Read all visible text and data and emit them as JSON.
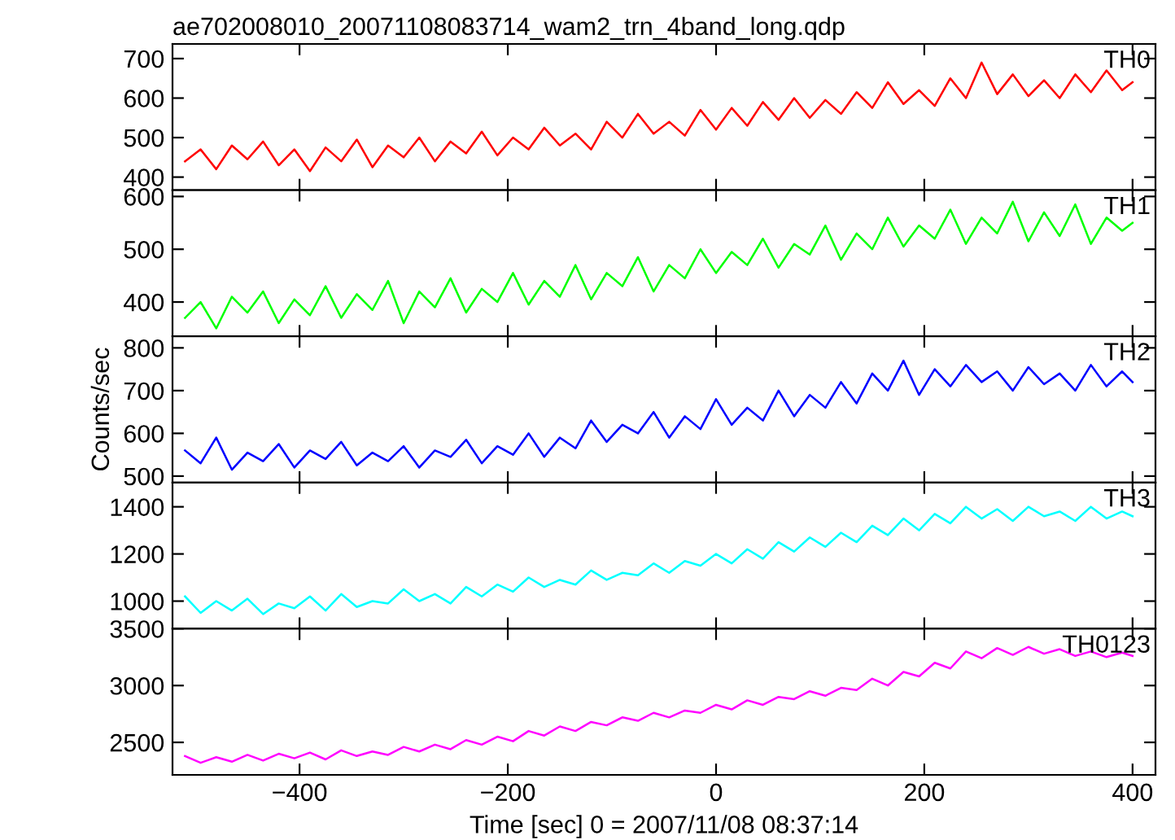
{
  "chart_data": [
    {
      "type": "line",
      "title": "ae702008010_20071108083714_wam2_trn_4band_long.qdp",
      "x": [
        -510,
        -495,
        -480,
        -465,
        -450,
        -435,
        -420,
        -405,
        -390,
        -375,
        -360,
        -345,
        -330,
        -315,
        -300,
        -285,
        -270,
        -255,
        -240,
        -225,
        -210,
        -195,
        -180,
        -165,
        -150,
        -135,
        -120,
        -105,
        -90,
        -75,
        -60,
        -45,
        -30,
        -15,
        0,
        15,
        30,
        45,
        60,
        75,
        90,
        105,
        120,
        135,
        150,
        165,
        180,
        195,
        210,
        225,
        240,
        255,
        270,
        285,
        300,
        315,
        330,
        345,
        360,
        375,
        390,
        400
      ],
      "xlim": [
        -522,
        422
      ],
      "xticks": [
        {
          "value": -400,
          "label": null
        },
        {
          "value": -200,
          "label": null
        },
        {
          "value": 0,
          "label": null
        },
        {
          "value": 200,
          "label": null
        },
        {
          "value": 400,
          "label": null
        }
      ],
      "ylim": [
        367,
        737
      ],
      "yticks": [
        400,
        500,
        600,
        700
      ],
      "tick_labels": "y",
      "grid": false,
      "legend": false,
      "series": [
        {
          "name": "TH0",
          "color": "#ff0000",
          "values": [
            440,
            470,
            420,
            480,
            445,
            490,
            430,
            470,
            415,
            475,
            440,
            495,
            425,
            480,
            450,
            500,
            440,
            490,
            460,
            515,
            455,
            500,
            470,
            525,
            480,
            510,
            470,
            540,
            500,
            560,
            510,
            540,
            505,
            570,
            520,
            575,
            530,
            590,
            545,
            600,
            550,
            595,
            560,
            615,
            575,
            640,
            585,
            620,
            580,
            650,
            600,
            690,
            610,
            660,
            605,
            645,
            600,
            660,
            615,
            670,
            620,
            640
          ]
        }
      ]
    },
    {
      "type": "line",
      "x": [
        -510,
        -495,
        -480,
        -465,
        -450,
        -435,
        -420,
        -405,
        -390,
        -375,
        -360,
        -345,
        -330,
        -315,
        -300,
        -285,
        -270,
        -255,
        -240,
        -225,
        -210,
        -195,
        -180,
        -165,
        -150,
        -135,
        -120,
        -105,
        -90,
        -75,
        -60,
        -45,
        -30,
        -15,
        0,
        15,
        30,
        45,
        60,
        75,
        90,
        105,
        120,
        135,
        150,
        165,
        180,
        195,
        210,
        225,
        240,
        255,
        270,
        285,
        300,
        315,
        330,
        345,
        360,
        375,
        390,
        400
      ],
      "xlim": [
        -522,
        422
      ],
      "xticks": [
        {
          "value": -400,
          "label": null
        },
        {
          "value": -200,
          "label": null
        },
        {
          "value": 0,
          "label": null
        },
        {
          "value": 200,
          "label": null
        },
        {
          "value": 400,
          "label": null
        }
      ],
      "ylim": [
        335,
        612
      ],
      "yticks": [
        400,
        500,
        600
      ],
      "tick_labels": "y",
      "grid": false,
      "legend": false,
      "series": [
        {
          "name": "TH1",
          "color": "#00ff00",
          "values": [
            370,
            400,
            350,
            410,
            380,
            420,
            360,
            405,
            375,
            430,
            370,
            415,
            385,
            440,
            360,
            420,
            390,
            445,
            380,
            425,
            400,
            455,
            395,
            440,
            410,
            470,
            405,
            455,
            430,
            485,
            420,
            470,
            445,
            500,
            455,
            495,
            470,
            520,
            465,
            510,
            490,
            545,
            480,
            530,
            500,
            560,
            505,
            545,
            520,
            575,
            510,
            560,
            530,
            590,
            515,
            570,
            525,
            585,
            510,
            560,
            535,
            550
          ]
        }
      ]
    },
    {
      "type": "line",
      "ylabel": "Counts/sec",
      "x": [
        -510,
        -495,
        -480,
        -465,
        -450,
        -435,
        -420,
        -405,
        -390,
        -375,
        -360,
        -345,
        -330,
        -315,
        -300,
        -285,
        -270,
        -255,
        -240,
        -225,
        -210,
        -195,
        -180,
        -165,
        -150,
        -135,
        -120,
        -105,
        -90,
        -75,
        -60,
        -45,
        -30,
        -15,
        0,
        15,
        30,
        45,
        60,
        75,
        90,
        105,
        120,
        135,
        150,
        165,
        180,
        195,
        210,
        225,
        240,
        255,
        270,
        285,
        300,
        315,
        330,
        345,
        360,
        375,
        390,
        400
      ],
      "xlim": [
        -522,
        422
      ],
      "xticks": [
        {
          "value": -400,
          "label": null
        },
        {
          "value": -200,
          "label": null
        },
        {
          "value": 0,
          "label": null
        },
        {
          "value": 200,
          "label": null
        },
        {
          "value": 400,
          "label": null
        }
      ],
      "ylim": [
        485,
        827
      ],
      "yticks": [
        500,
        600,
        700,
        800
      ],
      "tick_labels": "y",
      "grid": false,
      "legend": false,
      "series": [
        {
          "name": "TH2",
          "color": "#0000ff",
          "values": [
            560,
            530,
            590,
            515,
            555,
            535,
            575,
            520,
            560,
            540,
            580,
            525,
            555,
            535,
            570,
            520,
            560,
            545,
            585,
            530,
            570,
            550,
            600,
            545,
            590,
            565,
            630,
            580,
            620,
            600,
            650,
            590,
            640,
            610,
            680,
            620,
            660,
            630,
            700,
            640,
            690,
            660,
            720,
            670,
            740,
            700,
            770,
            690,
            750,
            710,
            760,
            720,
            745,
            700,
            755,
            715,
            740,
            700,
            760,
            710,
            745,
            720
          ]
        }
      ]
    },
    {
      "type": "line",
      "x": [
        -510,
        -495,
        -480,
        -465,
        -450,
        -435,
        -420,
        -405,
        -390,
        -375,
        -360,
        -345,
        -330,
        -315,
        -300,
        -285,
        -270,
        -255,
        -240,
        -225,
        -210,
        -195,
        -180,
        -165,
        -150,
        -135,
        -120,
        -105,
        -90,
        -75,
        -60,
        -45,
        -30,
        -15,
        0,
        15,
        30,
        45,
        60,
        75,
        90,
        105,
        120,
        135,
        150,
        165,
        180,
        195,
        210,
        225,
        240,
        255,
        270,
        285,
        300,
        315,
        330,
        345,
        360,
        375,
        390,
        400
      ],
      "xlim": [
        -522,
        422
      ],
      "xticks": [
        {
          "value": -400,
          "label": null
        },
        {
          "value": -200,
          "label": null
        },
        {
          "value": 0,
          "label": null
        },
        {
          "value": 200,
          "label": null
        },
        {
          "value": 400,
          "label": null
        }
      ],
      "ylim": [
        883,
        1503
      ],
      "yticks": [
        1000,
        1200,
        1400
      ],
      "tick_labels": "y",
      "grid": false,
      "legend": false,
      "series": [
        {
          "name": "TH3",
          "color": "#00ffff",
          "values": [
            1020,
            950,
            1000,
            960,
            1010,
            945,
            990,
            970,
            1020,
            960,
            1030,
            975,
            1000,
            990,
            1050,
            1000,
            1030,
            990,
            1060,
            1020,
            1070,
            1040,
            1100,
            1060,
            1090,
            1070,
            1130,
            1090,
            1120,
            1110,
            1160,
            1120,
            1170,
            1150,
            1200,
            1160,
            1220,
            1180,
            1250,
            1210,
            1270,
            1230,
            1290,
            1250,
            1320,
            1280,
            1350,
            1300,
            1370,
            1330,
            1400,
            1350,
            1390,
            1340,
            1400,
            1360,
            1380,
            1340,
            1400,
            1350,
            1380,
            1360
          ]
        }
      ]
    },
    {
      "type": "line",
      "xlabel": "Time [sec] 0 = 2007/11/08 08:37:14",
      "x": [
        -510,
        -495,
        -480,
        -465,
        -450,
        -435,
        -420,
        -405,
        -390,
        -375,
        -360,
        -345,
        -330,
        -315,
        -300,
        -285,
        -270,
        -255,
        -240,
        -225,
        -210,
        -195,
        -180,
        -165,
        -150,
        -135,
        -120,
        -105,
        -90,
        -75,
        -60,
        -45,
        -30,
        -15,
        0,
        15,
        30,
        45,
        60,
        75,
        90,
        105,
        120,
        135,
        150,
        165,
        180,
        195,
        210,
        225,
        240,
        255,
        270,
        285,
        300,
        315,
        330,
        345,
        360,
        375,
        390,
        400
      ],
      "xlim": [
        -522,
        422
      ],
      "xticks": [
        -400,
        -200,
        0,
        200,
        400
      ],
      "ylim": [
        2214,
        3500
      ],
      "yticks": [
        2500,
        3000,
        3500
      ],
      "grid": false,
      "legend": false,
      "series": [
        {
          "name": "TH0123",
          "color": "#ff00ff",
          "values": [
            2380,
            2320,
            2370,
            2330,
            2390,
            2340,
            2400,
            2360,
            2410,
            2350,
            2430,
            2380,
            2420,
            2390,
            2460,
            2420,
            2480,
            2440,
            2520,
            2480,
            2550,
            2510,
            2600,
            2560,
            2640,
            2600,
            2680,
            2650,
            2720,
            2690,
            2760,
            2720,
            2780,
            2760,
            2830,
            2790,
            2870,
            2830,
            2900,
            2880,
            2950,
            2910,
            2980,
            2960,
            3060,
            3000,
            3120,
            3080,
            3200,
            3150,
            3300,
            3240,
            3330,
            3270,
            3340,
            3280,
            3320,
            3260,
            3300,
            3250,
            3290,
            3260
          ]
        }
      ]
    }
  ]
}
